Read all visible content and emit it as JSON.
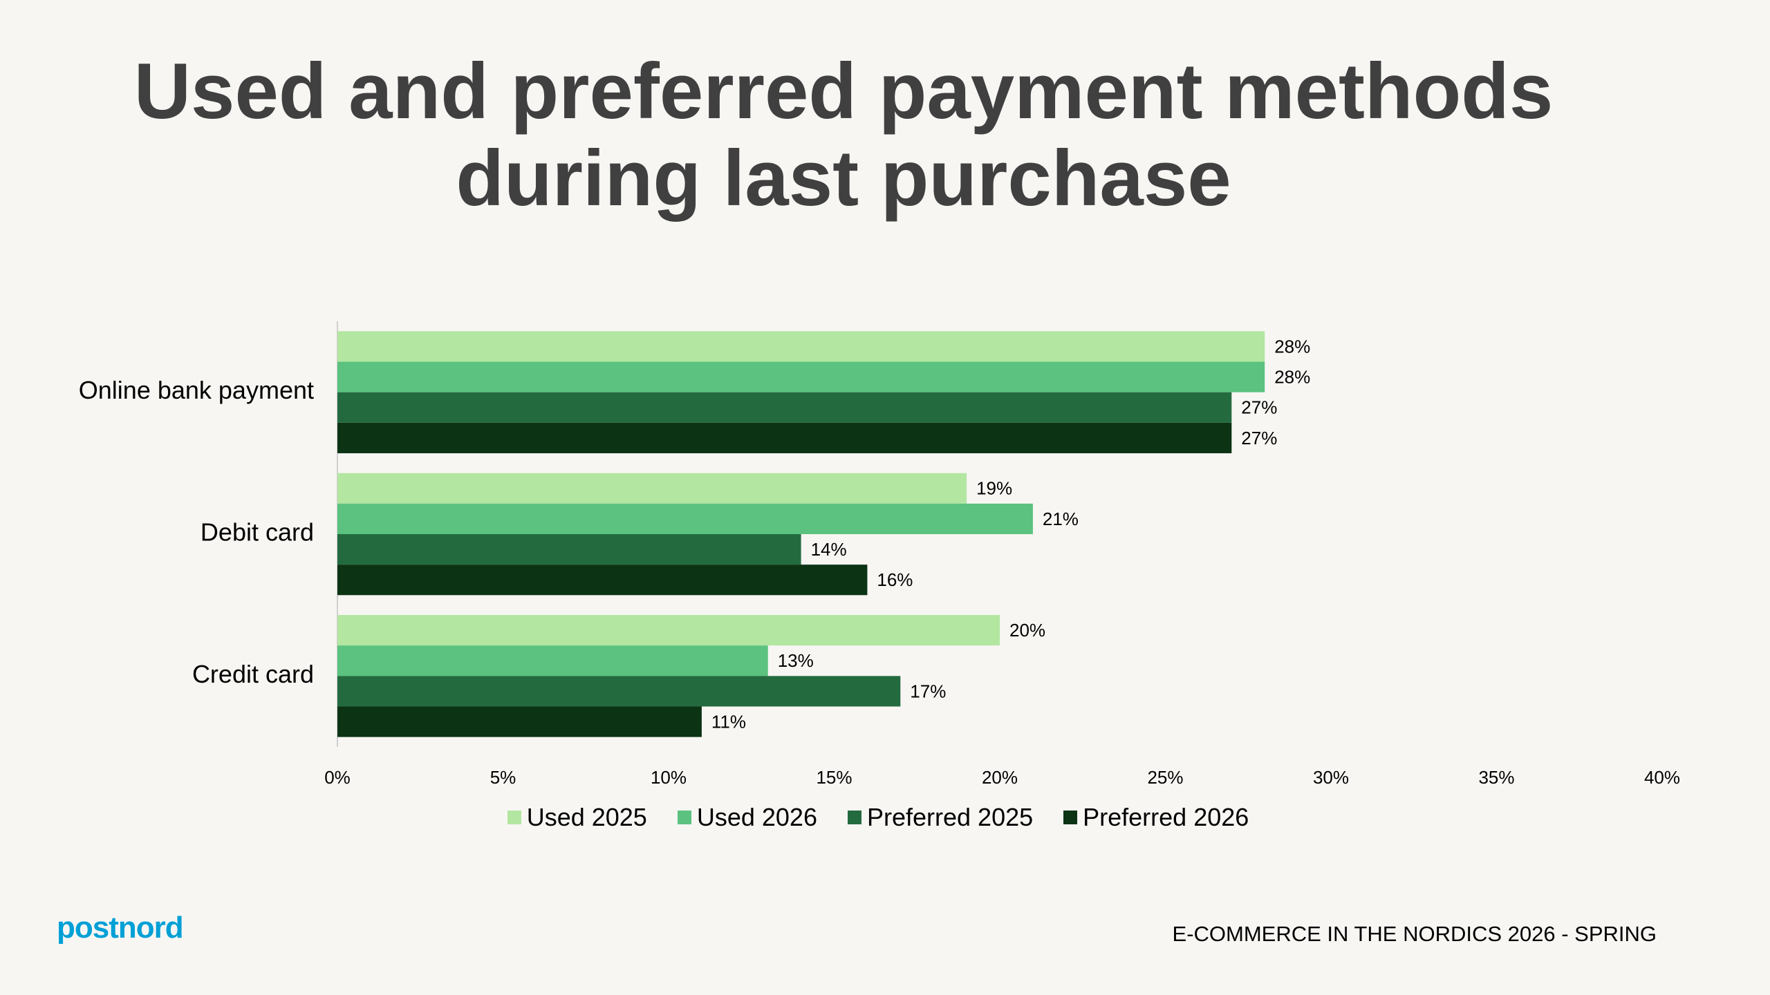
{
  "chart_data": {
    "type": "bar",
    "orientation": "horizontal",
    "title": "Used and preferred payment methods during last purchase",
    "categories": [
      "Online bank payment",
      "Debit card",
      "Credit card"
    ],
    "series": [
      {
        "name": "Used 2025",
        "color": "#b3e6a1",
        "values": [
          28,
          19,
          20
        ],
        "value_labels": [
          "28%",
          "19%",
          "20%"
        ]
      },
      {
        "name": "Used 2026",
        "color": "#5bc280",
        "values": [
          28,
          21,
          13
        ],
        "value_labels": [
          "28%",
          "21%",
          "13%"
        ]
      },
      {
        "name": "Preferred 2025",
        "color": "#236b3f",
        "values": [
          27,
          14,
          17
        ],
        "value_labels": [
          "27%",
          "14%",
          "17%"
        ]
      },
      {
        "name": "Preferred 2026",
        "color": "#0c3314",
        "values": [
          27,
          16,
          11
        ],
        "value_labels": [
          "27%",
          "16%",
          "11%"
        ]
      }
    ],
    "xlim": [
      0,
      40
    ],
    "xticks": [
      {
        "value": 0,
        "label": "0%"
      },
      {
        "value": 5,
        "label": "5%"
      },
      {
        "value": 10,
        "label": "10%"
      },
      {
        "value": 15,
        "label": "15%"
      },
      {
        "value": 20,
        "label": "20%"
      },
      {
        "value": 25,
        "label": "25%"
      },
      {
        "value": 30,
        "label": "30%"
      },
      {
        "value": 35,
        "label": "35%"
      },
      {
        "value": 40,
        "label": "40%"
      }
    ],
    "grid": false,
    "legend": "bottom"
  },
  "footer": {
    "logo": "postnord",
    "caption": "E-COMMERCE IN THE NORDICS 2026 - SPRING"
  }
}
